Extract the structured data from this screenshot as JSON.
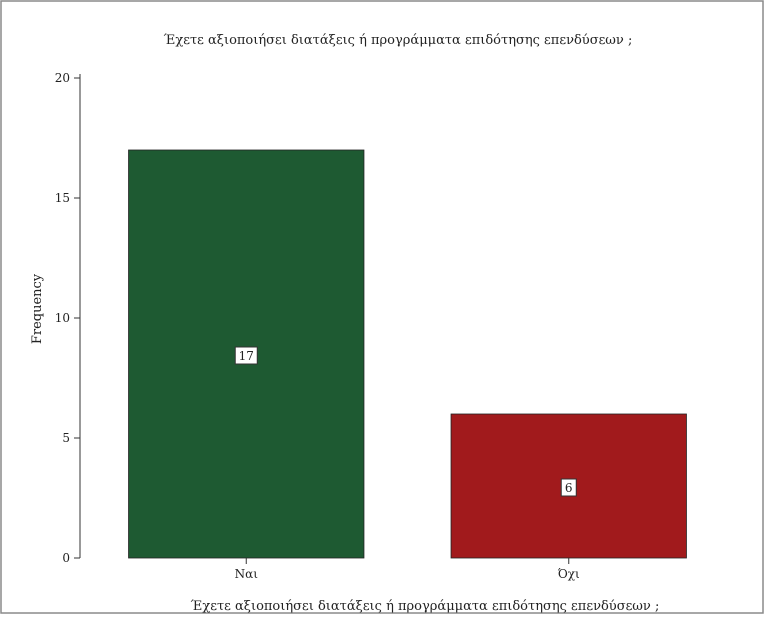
{
  "chart_data": {
    "type": "bar",
    "title": "Έχετε αξιοποιήσει διατάξεις ή προγράμματα επιδότησης επενδύσεων ;",
    "xlabel": "Έχετε αξιοποιήσει διατάξεις ή προγράμματα επιδότησης επενδύσεων ;",
    "ylabel": "Frequency",
    "categories": [
      "Ναι",
      "Όχι"
    ],
    "values": [
      17,
      6
    ],
    "data_labels": [
      "17",
      "6"
    ],
    "colors": [
      "#1e5a32",
      "#a11a1c"
    ],
    "ylim": [
      0,
      20
    ],
    "yticks": [
      0,
      5,
      10,
      15,
      20
    ],
    "ytick_labels": [
      "0",
      "5",
      "10",
      "15",
      "20"
    ],
    "grid": false,
    "legend": "none"
  }
}
